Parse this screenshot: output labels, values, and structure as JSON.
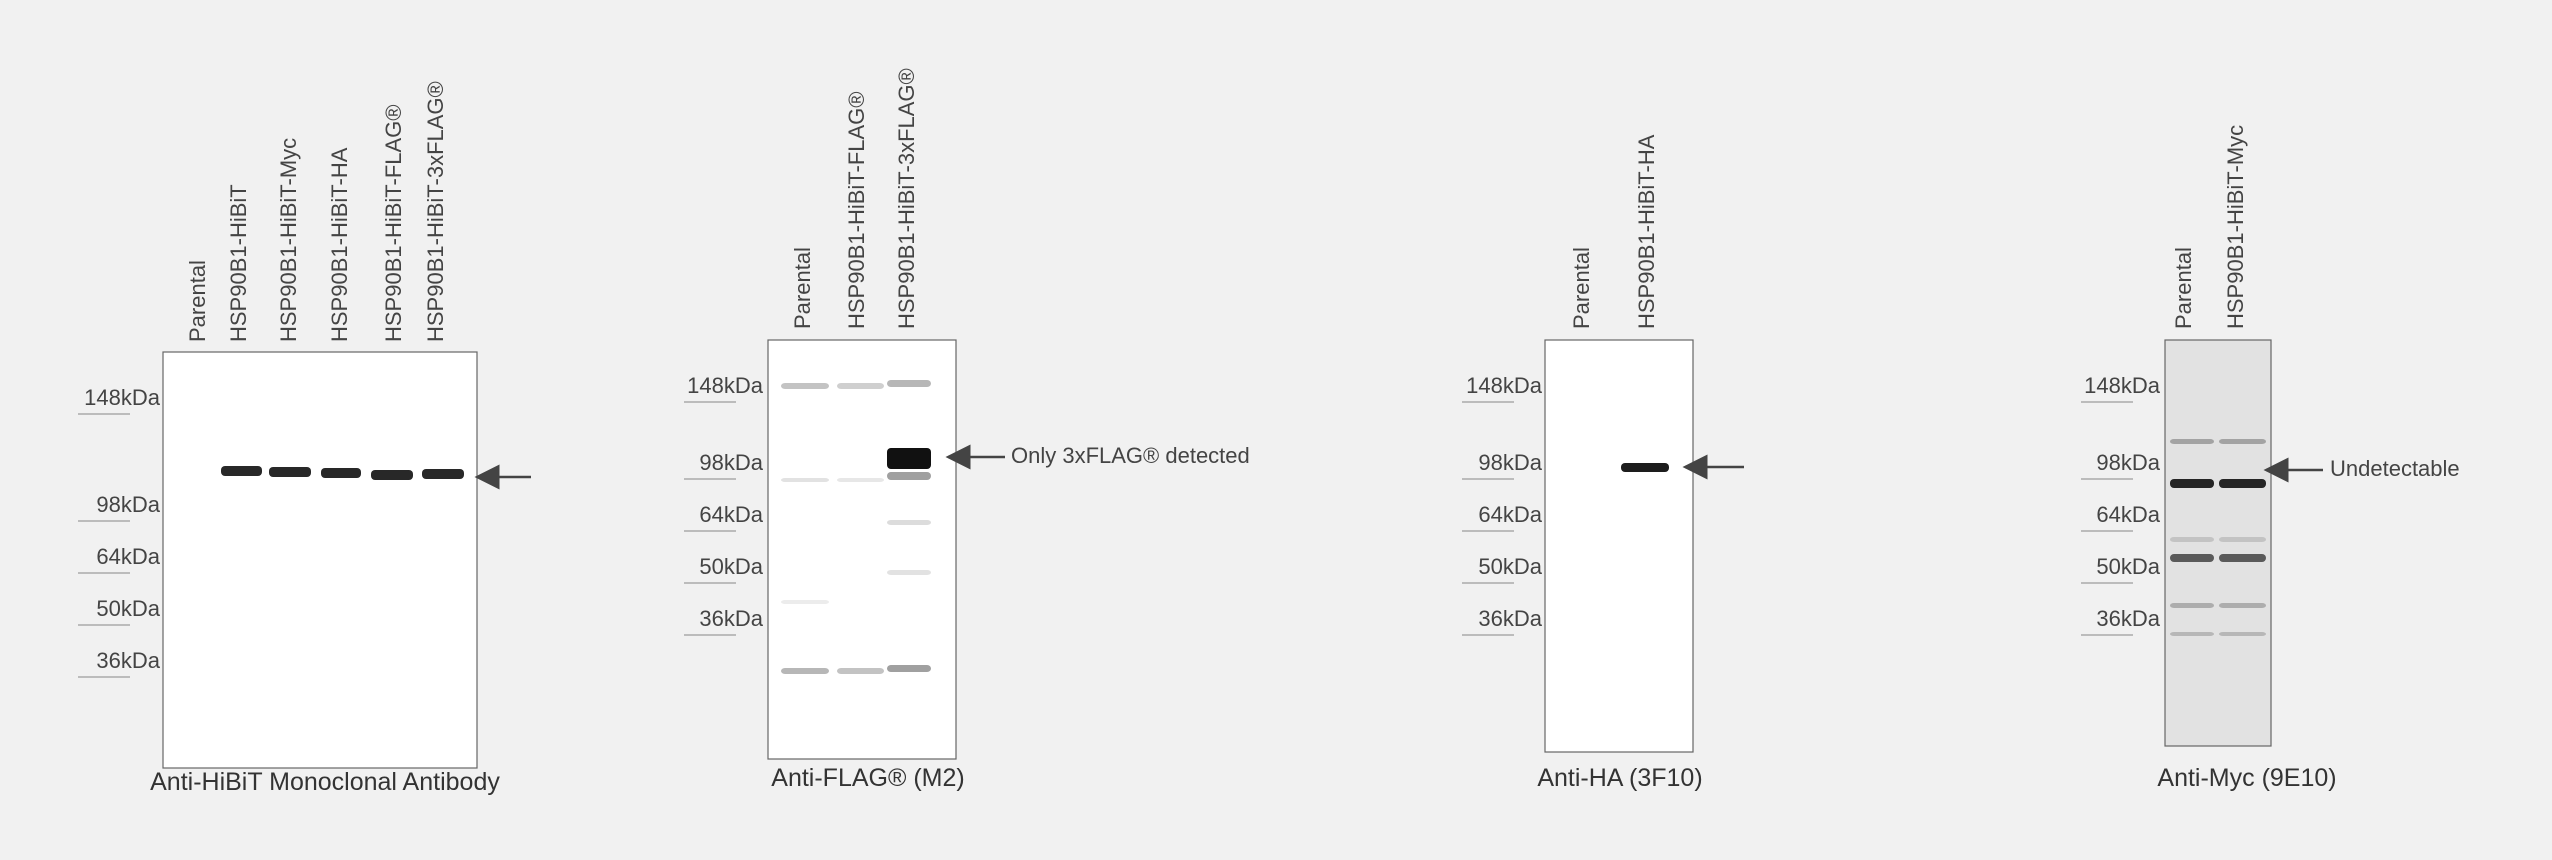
{
  "panels": [
    {
      "lanes": [
        "Parental",
        "HSP90B1-HiBiT",
        "HSP90B1-HiBiT-Myc",
        "HSP90B1-HiBiT-HA",
        "HSP90B1-HiBiT-FLAG®",
        "HSP90B1-HiBiT-3xFLAG®"
      ],
      "markers": [
        "148kDa",
        "98kDa",
        "64kDa",
        "50kDa",
        "36kDa"
      ],
      "caption": "Anti-HiBiT Monoclonal Antibody"
    },
    {
      "lanes": [
        "Parental",
        "HSP90B1-HiBiT-FLAG®",
        "HSP90B1-HiBiT-3xFLAG®"
      ],
      "markers": [
        "148kDa",
        "98kDa",
        "64kDa",
        "50kDa",
        "36kDa"
      ],
      "annotation": "Only 3xFLAG® detected",
      "caption": "Anti-FLAG® (M2)"
    },
    {
      "lanes": [
        "Parental",
        "HSP90B1-HiBiT-HA"
      ],
      "markers": [
        "148kDa",
        "98kDa",
        "64kDa",
        "50kDa",
        "36kDa"
      ],
      "caption": "Anti-HA (3F10)"
    },
    {
      "lanes": [
        "Parental",
        "HSP90B1-HiBiT-Myc"
      ],
      "markers": [
        "148kDa",
        "98kDa",
        "64kDa",
        "50kDa",
        "36kDa"
      ],
      "annotation": "Undetectable",
      "caption": "Anti-Myc (9E10)"
    }
  ]
}
